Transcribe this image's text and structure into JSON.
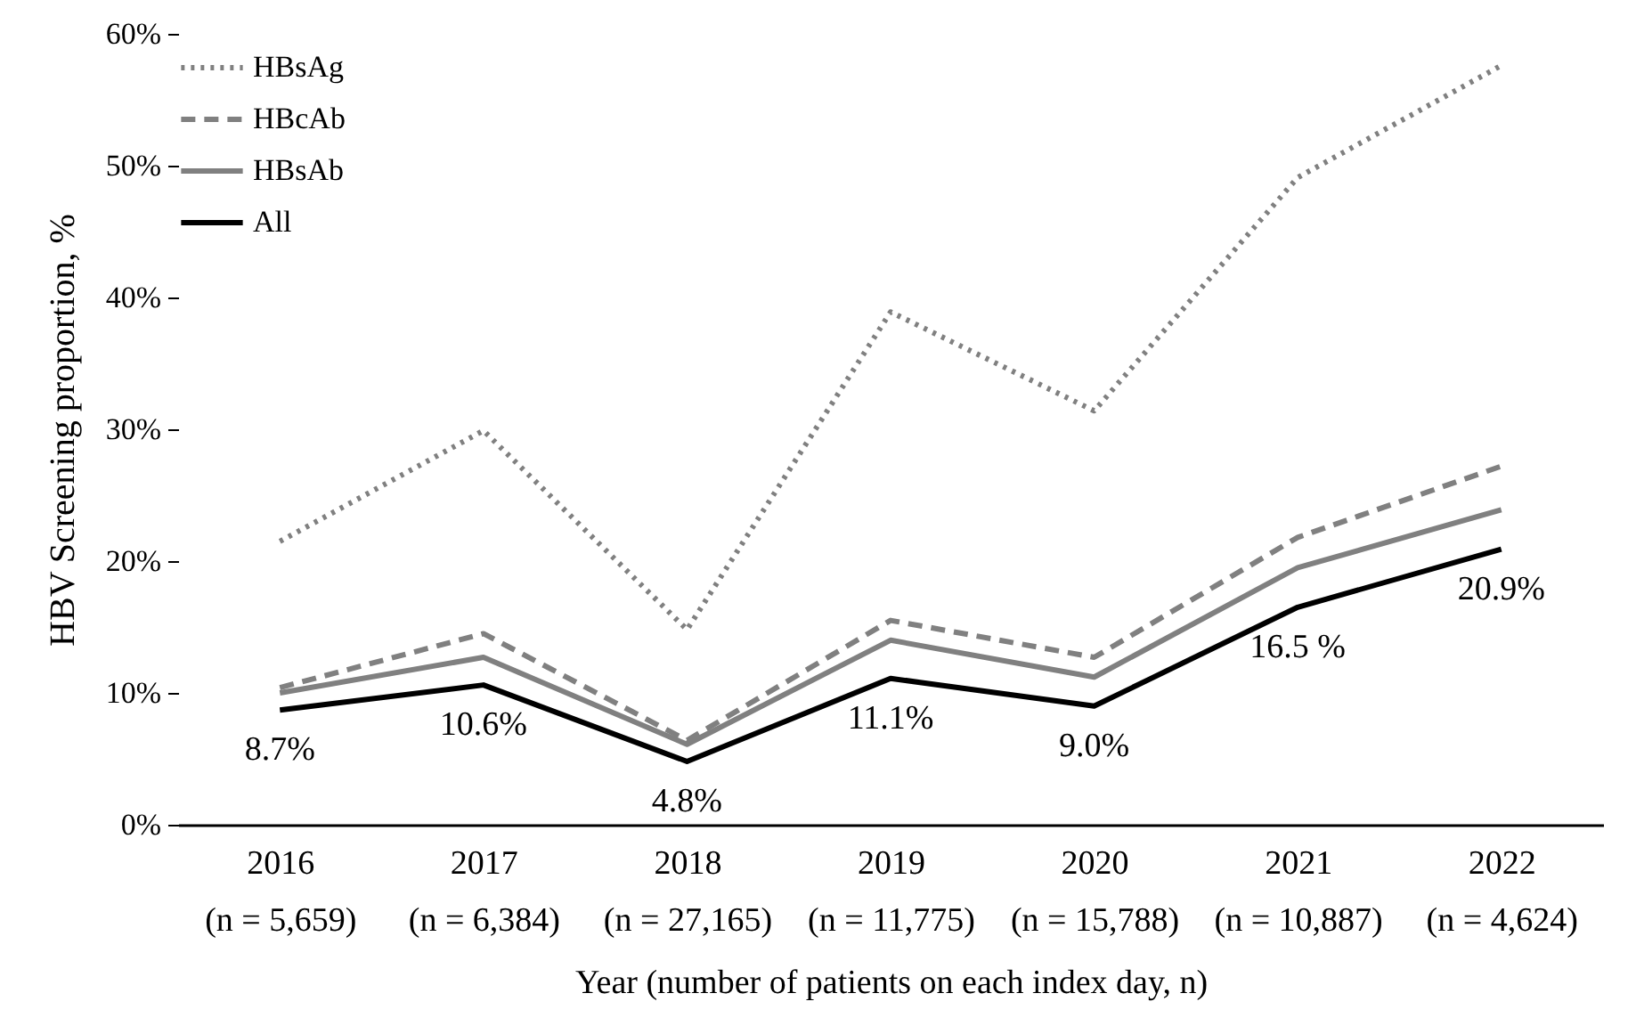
{
  "chart_data": {
    "type": "line",
    "xlabel": "Year (number of patients on each index day, n)",
    "ylabel": "HBV Screening proportion, %",
    "categories": [
      "2016\n(n = 5,659)",
      "2017\n(n = 6,384)",
      "2018\n(n = 27,165)",
      "2019\n(n = 11,775)",
      "2020\n(n = 15,788)",
      "2021\n(n = 10,887)",
      "2022\n(n = 4,624)"
    ],
    "series": [
      {
        "name": "HBsAg",
        "color": "#808080",
        "line_style": "dotted",
        "values": [
          21.5,
          29.9,
          14.8,
          38.9,
          31.4,
          49.1,
          57.6
        ]
      },
      {
        "name": "HBcAb",
        "color": "#808080",
        "line_style": "dashed",
        "values": [
          10.4,
          14.5,
          6.4,
          15.5,
          12.7,
          21.8,
          27.2
        ]
      },
      {
        "name": "HBsAb",
        "color": "#808080",
        "line_style": "solid",
        "values": [
          10.0,
          12.7,
          6.1,
          14.0,
          11.2,
          19.5,
          23.9
        ]
      },
      {
        "name": "All",
        "color": "#000000",
        "line_style": "solid",
        "values": [
          8.7,
          10.6,
          4.8,
          11.1,
          9.0,
          16.5,
          20.9
        ],
        "value_labels": [
          "8.7%",
          "10.6%",
          "4.8%",
          "11.1%",
          "9.0%",
          "16.5 %",
          "20.9%"
        ]
      }
    ],
    "ylim": [
      0,
      60
    ],
    "yticks": [
      {
        "value": 0,
        "label": "0%"
      },
      {
        "value": 10,
        "label": "10%"
      },
      {
        "value": 20,
        "label": "20%"
      },
      {
        "value": 30,
        "label": "30%"
      },
      {
        "value": 40,
        "label": "40%"
      },
      {
        "value": 50,
        "label": "50%"
      },
      {
        "value": 60,
        "label": "60%"
      }
    ],
    "grid": false,
    "legend": "top left",
    "marker": "none"
  }
}
